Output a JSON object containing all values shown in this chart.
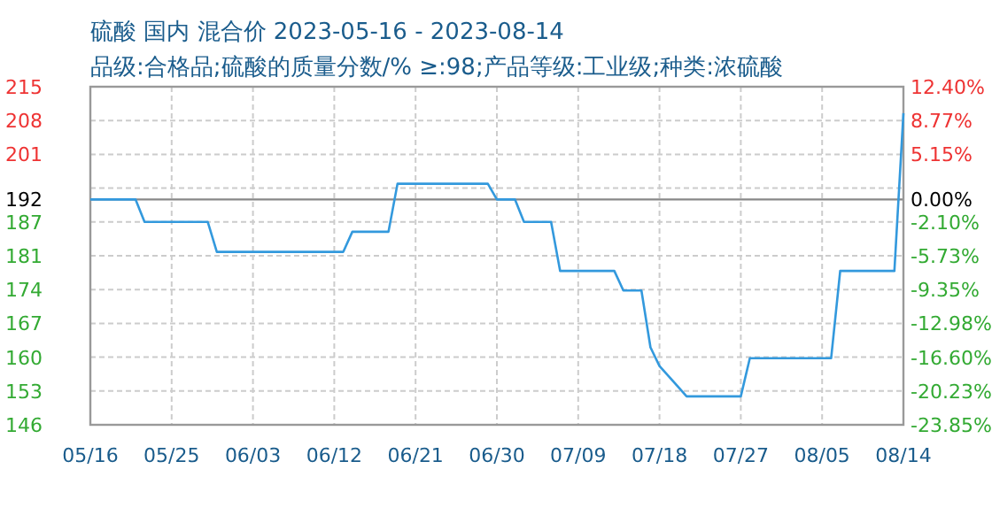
{
  "chart_data": {
    "type": "line",
    "title": "硫酸 国内 混合价 2023-05-16 - 2023-08-14",
    "subtitle": "品级:合格品;硫酸的质量分数/% ≥:98;产品等级:工业级;种类:浓硫酸",
    "x": [
      "2023-05-16",
      "2023-05-21",
      "2023-05-22",
      "2023-05-29",
      "2023-05-30",
      "2023-06-13",
      "2023-06-14",
      "2023-06-18",
      "2023-06-19",
      "2023-06-29",
      "2023-06-30",
      "2023-07-02",
      "2023-07-03",
      "2023-07-06",
      "2023-07-07",
      "2023-07-13",
      "2023-07-14",
      "2023-07-16",
      "2023-07-17",
      "2023-07-18",
      "2023-07-21",
      "2023-07-27",
      "2023-07-28",
      "2023-08-06",
      "2023-08-07",
      "2023-08-13",
      "2023-08-14"
    ],
    "series": [
      {
        "color": "#3399dd",
        "values": [
          192,
          192,
          187.4,
          187.4,
          181.3,
          181.3,
          185.4,
          185.4,
          195.2,
          195.2,
          192,
          192,
          187.4,
          187.4,
          177.4,
          177.4,
          173.4,
          173.4,
          161.8,
          158,
          151.8,
          151.8,
          159.6,
          159.6,
          177.4,
          177.4,
          209.6
        ]
      }
    ],
    "xlim": [
      "2023-05-16",
      "2023-08-14"
    ],
    "xticks": [
      {
        "value": "2023-05-16",
        "label": "05/16"
      },
      {
        "value": "2023-05-25",
        "label": "05/25"
      },
      {
        "value": "2023-06-03",
        "label": "06/03"
      },
      {
        "value": "2023-06-12",
        "label": "06/12"
      },
      {
        "value": "2023-06-21",
        "label": "06/21"
      },
      {
        "value": "2023-06-30",
        "label": "06/30"
      },
      {
        "value": "2023-07-09",
        "label": "07/09"
      },
      {
        "value": "2023-07-18",
        "label": "07/18"
      },
      {
        "value": "2023-07-27",
        "label": "07/27"
      },
      {
        "value": "2023-08-05",
        "label": "08/05"
      },
      {
        "value": "2023-08-14",
        "label": "08/14"
      }
    ],
    "ylim": [
      146,
      215
    ],
    "yticks": [
      215,
      {
        "value": 208.1,
        "label": "208"
      },
      {
        "value": 201.2,
        "label": "201"
      },
      {
        "value": 194.3,
        "label": null
      },
      {
        "value": 187.4,
        "label": "187"
      },
      {
        "value": 180.5,
        "label": "181"
      },
      {
        "value": 173.6,
        "label": "174"
      },
      {
        "value": 166.7,
        "label": "167"
      },
      {
        "value": 159.8,
        "label": "160"
      },
      {
        "value": 152.9,
        "label": "153"
      },
      146
    ],
    "y2lim": [
      -23.85,
      12.4
    ],
    "y2ticks": [
      {
        "value": 12.4,
        "label": "12.40%"
      },
      {
        "value": 8.775,
        "label": "8.77%"
      },
      {
        "value": 5.15,
        "label": "5.15%"
      },
      {
        "value": 1.525,
        "label": null
      },
      {
        "value": -2.1,
        "label": "-2.10%"
      },
      {
        "value": -5.725,
        "label": "-5.73%"
      },
      {
        "value": -9.35,
        "label": "-9.35%"
      },
      {
        "value": -12.975,
        "label": "-12.98%"
      },
      {
        "value": -16.6,
        "label": "-16.60%"
      },
      {
        "value": -20.225,
        "label": "-20.23%"
      },
      {
        "value": -23.85,
        "label": "-23.85%"
      }
    ],
    "annotations": [
      {
        "text": "0.00%",
        "x": "2023-08-14",
        "y": 192
      }
    ],
    "ref_lines": [
      {
        "axis": "y",
        "value": 192,
        "label": "192",
        "color": "#888888"
      }
    ],
    "grid": true,
    "line_style": "solid",
    "marker": "none"
  }
}
